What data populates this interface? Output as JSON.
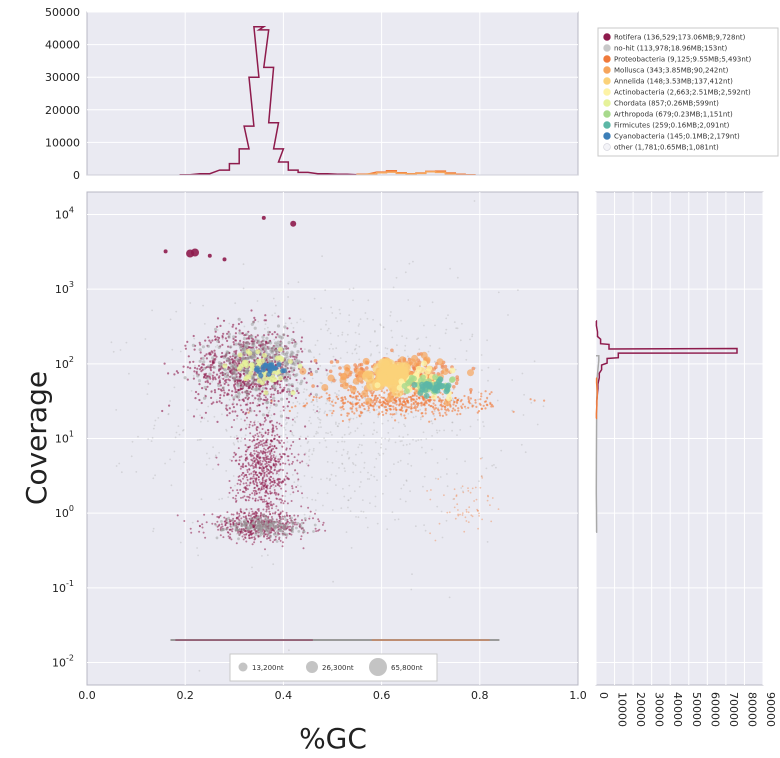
{
  "chart_data": [
    {
      "type": "histogram",
      "panel": "top",
      "xlim": [
        0.0,
        1.0
      ],
      "ylim": [
        0,
        50000
      ],
      "y_ticks": [
        "0",
        "10000",
        "20000",
        "30000",
        "40000",
        "50000"
      ],
      "grid": true,
      "series": [
        {
          "name": "Rotifera",
          "color": "#8e1b4c",
          "x": [
            0.2,
            0.24,
            0.28,
            0.3,
            0.32,
            0.33,
            0.34,
            0.35,
            0.36,
            0.37,
            0.38,
            0.39,
            0.4,
            0.42,
            0.44,
            0.48,
            0.52,
            0.56
          ],
          "values": [
            100,
            400,
            1500,
            3500,
            8000,
            15000,
            30000,
            45500,
            44500,
            33000,
            16000,
            8000,
            4000,
            1500,
            800,
            400,
            200,
            100
          ]
        },
        {
          "name": "Proteobacteria",
          "color": "#f07a3a",
          "x": [
            0.56,
            0.6,
            0.62,
            0.64,
            0.66,
            0.68,
            0.7,
            0.72,
            0.74,
            0.76,
            0.78
          ],
          "values": [
            200,
            900,
            1300,
            700,
            400,
            600,
            1100,
            1200,
            600,
            200,
            100
          ]
        },
        {
          "name": "Mollusca",
          "color": "#f6a55c",
          "x": [
            0.56,
            0.58,
            0.6,
            0.62,
            0.64,
            0.66,
            0.68,
            0.7,
            0.72,
            0.74
          ],
          "values": [
            100,
            300,
            700,
            900,
            500,
            300,
            500,
            1000,
            800,
            300
          ]
        }
      ]
    },
    {
      "type": "scatter",
      "panel": "main",
      "xlabel": "%GC",
      "ylabel": "Coverage",
      "xlim": [
        0.0,
        1.0
      ],
      "ylim": [
        0.005,
        20000
      ],
      "y_scale": "log",
      "x_ticks": [
        "0.0",
        "0.2",
        "0.4",
        "0.6",
        "0.8",
        "1.0"
      ],
      "y_ticks": [
        {
          "value": 0.01,
          "base": "10",
          "exp": "-2"
        },
        {
          "value": 0.1,
          "base": "10",
          "exp": "-1"
        },
        {
          "value": 1,
          "base": "10",
          "exp": "0"
        },
        {
          "value": 10,
          "base": "10",
          "exp": "1"
        },
        {
          "value": 100,
          "base": "10",
          "exp": "2"
        },
        {
          "value": 1000,
          "base": "10",
          "exp": "3"
        },
        {
          "value": 10000,
          "base": "10",
          "exp": "4"
        }
      ],
      "grid": true,
      "clusters": [
        {
          "taxon": "Rotifera",
          "color": "#8e1b4c",
          "gc_range": [
            0.18,
            0.46
          ],
          "cov_range": [
            0.4,
            400
          ]
        },
        {
          "taxon": "no-hit",
          "color": "#a9a9a9",
          "gc_range": [
            0.15,
            0.85
          ],
          "cov_range": [
            0.5,
            1000
          ]
        },
        {
          "taxon": "Proteobacteria",
          "color": "#f07a3a",
          "gc_range": [
            0.47,
            0.82
          ],
          "cov_range": [
            20,
            120
          ]
        },
        {
          "taxon": "Mollusca",
          "color": "#f6a55c",
          "gc_range": [
            0.5,
            0.76
          ],
          "cov_range": [
            40,
            130
          ]
        },
        {
          "taxon": "Annelida",
          "color": "#fbd27a",
          "gc_range": [
            0.58,
            0.66
          ],
          "cov_range": [
            50,
            110
          ]
        },
        {
          "taxon": "Actinobacteria",
          "color": "#fdf3a6",
          "gc_range": [
            0.62,
            0.74
          ],
          "cov_range": [
            40,
            90
          ]
        },
        {
          "taxon": "Chordata",
          "color": "#e6f29a",
          "gc_range": [
            0.3,
            0.42
          ],
          "cov_range": [
            50,
            150
          ]
        },
        {
          "taxon": "Arthropoda",
          "color": "#a7d98c",
          "gc_range": [
            0.64,
            0.74
          ],
          "cov_range": [
            40,
            70
          ]
        },
        {
          "taxon": "Firmicutes",
          "color": "#5cb7a6",
          "gc_range": [
            0.66,
            0.74
          ],
          "cov_range": [
            40,
            60
          ]
        },
        {
          "taxon": "Cyanobacteria",
          "color": "#3c7fb8",
          "gc_range": [
            0.34,
            0.4
          ],
          "cov_range": [
            70,
            110
          ]
        }
      ],
      "rug_coverage": 0.02,
      "size_legend": [
        "13,200nt",
        "26,300nt",
        "65,800nt"
      ]
    },
    {
      "type": "histogram",
      "panel": "right",
      "orientation": "horizontal",
      "ylim": [
        0.005,
        20000
      ],
      "xlim": [
        0,
        90000
      ],
      "x_ticks": [
        "0",
        "10000",
        "20000",
        "30000",
        "40000",
        "50000",
        "60000",
        "70000",
        "80000",
        "90000"
      ],
      "grid": true,
      "series": [
        {
          "name": "Rotifera",
          "color": "#8e1b4c",
          "coverage": [
            30,
            50,
            70,
            90,
            110,
            130,
            150,
            170,
            200,
            250,
            350
          ],
          "values": [
            400,
            1000,
            1800,
            3000,
            6000,
            12000,
            76000,
            7000,
            2500,
            800,
            200
          ]
        },
        {
          "name": "no-hit",
          "color": "#a9a9a9",
          "coverage": [
            0.6,
            1,
            2,
            5,
            20,
            60,
            120
          ],
          "values": [
            300,
            250,
            150,
            200,
            300,
            600,
            1500
          ]
        },
        {
          "name": "Proteobacteria",
          "color": "#f07a3a",
          "coverage": [
            20,
            30,
            40,
            60
          ],
          "values": [
            200,
            500,
            700,
            300
          ]
        }
      ]
    }
  ],
  "legend": {
    "placement": "top-right",
    "entries": [
      {
        "label": "Rotifera (136,529;173.06MB;9,728nt)",
        "color": "#8e1b4c"
      },
      {
        "label": "no-hit (113,978;18.96MB;153nt)",
        "color": "#c8c8c8"
      },
      {
        "label": "Proteobacteria (9,125;9.55MB;5,493nt)",
        "color": "#f07a3a"
      },
      {
        "label": "Mollusca (343;3.85MB;90,242nt)",
        "color": "#f6a55c"
      },
      {
        "label": "Annelida (148;3.53MB;137,412nt)",
        "color": "#fbd27a"
      },
      {
        "label": "Actinobacteria (2,663;2.51MB;2,592nt)",
        "color": "#fdf3a6"
      },
      {
        "label": "Chordata (857;0.26MB;599nt)",
        "color": "#e6f29a"
      },
      {
        "label": "Arthropoda (679;0.23MB;1,151nt)",
        "color": "#a7d98c"
      },
      {
        "label": "Firmicutes (259;0.16MB;2,091nt)",
        "color": "#5cb7a6"
      },
      {
        "label": "Cyanobacteria (145;0.1MB;2,179nt)",
        "color": "#3c7fb8"
      },
      {
        "label": "other (1,781;0.65MB;1,081nt)",
        "color": "#f4f4f8"
      }
    ]
  }
}
